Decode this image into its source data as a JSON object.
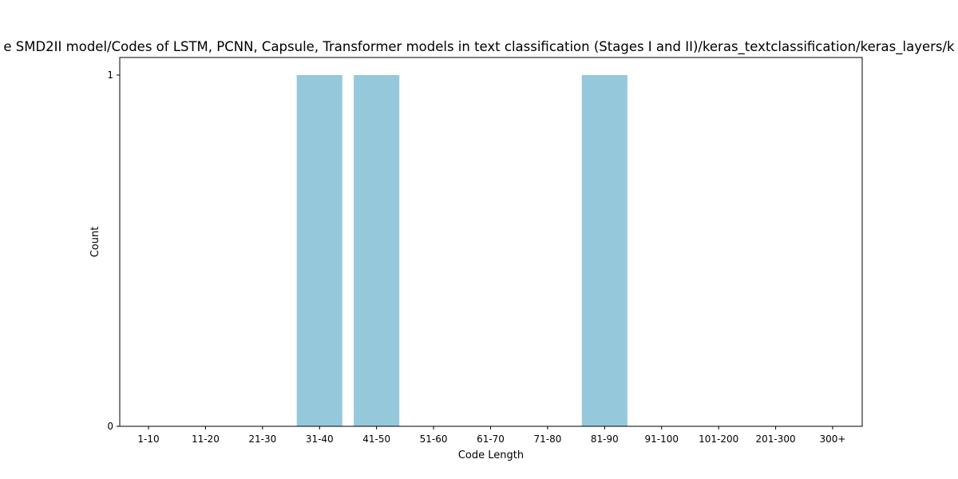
{
  "chart_data": {
    "type": "bar",
    "title": "e SMD2II model/Codes of LSTM, PCNN, Capsule, Transformer models in text classification (Stages I and II)/keras_textclassification/keras_layers/k",
    "xlabel": "Code Length",
    "ylabel": "Count",
    "categories": [
      "1-10",
      "11-20",
      "21-30",
      "31-40",
      "41-50",
      "51-60",
      "61-70",
      "71-80",
      "81-90",
      "91-100",
      "101-200",
      "201-300",
      "300+"
    ],
    "values": [
      0,
      0,
      0,
      1,
      1,
      0,
      0,
      0,
      1,
      0,
      0,
      0,
      0
    ],
    "ylim": [
      0,
      1
    ],
    "yticks": [
      "0",
      "1"
    ],
    "grid": false,
    "bar_color": "#96c8dc"
  }
}
